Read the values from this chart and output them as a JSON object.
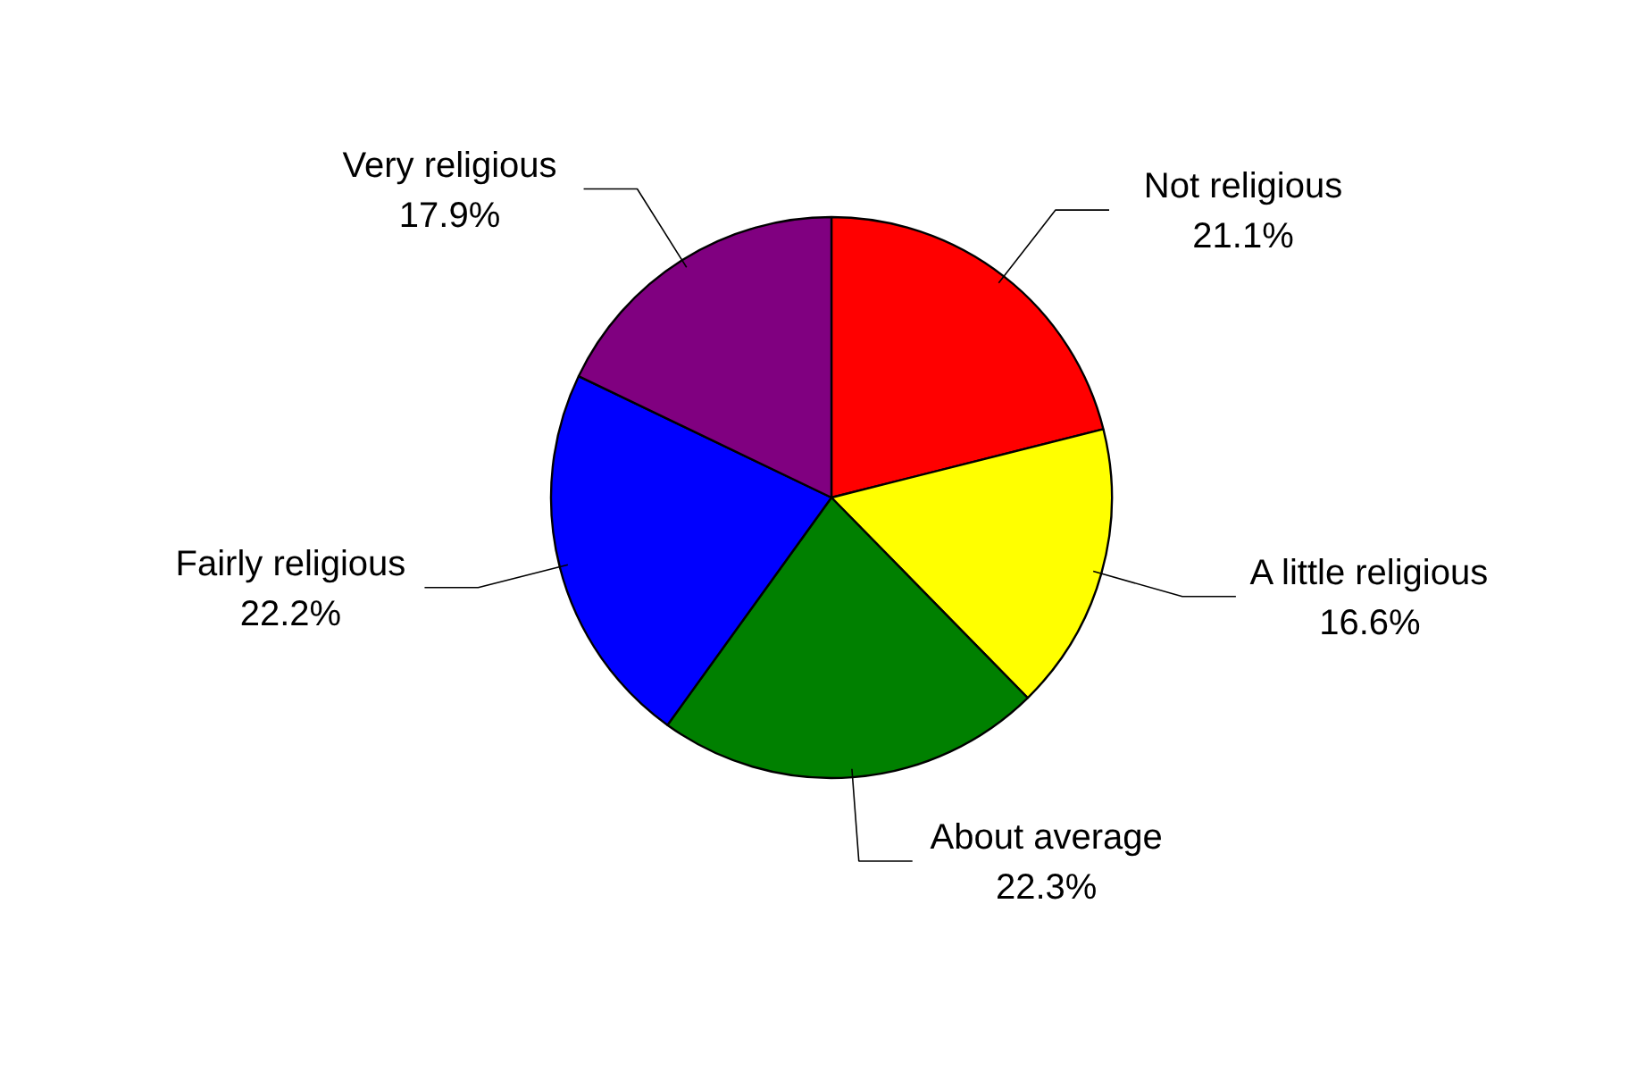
{
  "chart_data": {
    "type": "pie",
    "categories": [
      "Not religious",
      "A little religious",
      "About average",
      "Fairly religious",
      "Very religious"
    ],
    "values": [
      21.1,
      16.6,
      22.3,
      22.2,
      17.9
    ],
    "colors": [
      "#ff0000",
      "#ffff00",
      "#008000",
      "#0000ff",
      "#800080"
    ],
    "value_labels": [
      "21.1%",
      "16.6%",
      "22.3%",
      "22.2%",
      "17.9%"
    ]
  }
}
